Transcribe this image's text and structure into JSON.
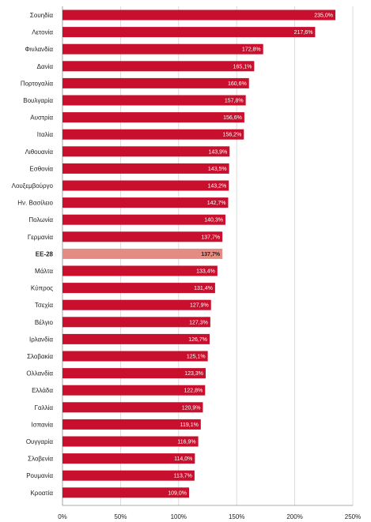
{
  "chart_data": {
    "type": "bar",
    "orientation": "horizontal",
    "categories": [
      "Σουηδία",
      "Λετονία",
      "Φινλανδία",
      "Δανία",
      "Πορτογαλία",
      "Βουλγαρία",
      "Αυστρία",
      "Ιταλία",
      "Λιθουανία",
      "Εσθονία",
      "Λουξεμβούργο",
      "Ην. Βασίλειο",
      "Πολωνία",
      "Γερμανία",
      "ΕΕ-28",
      "Μάλτα",
      "Κύπρος",
      "Τσεχία",
      "Βέλγιο",
      "Ιρλανδία",
      "Σλοβακία",
      "Ολλανδία",
      "Ελλάδα",
      "Γαλλία",
      "Ισπανία",
      "Ουγγαρία",
      "Σλοβενία",
      "Ρουμανία",
      "Κροατία"
    ],
    "values": [
      235.0,
      217.6,
      172.8,
      165.1,
      160.6,
      157.8,
      156.6,
      156.2,
      143.9,
      143.5,
      143.2,
      142.7,
      140.3,
      137.7,
      137.7,
      133.4,
      131.4,
      127.9,
      127.3,
      126.7,
      125.1,
      123.3,
      122.8,
      120.9,
      119.1,
      116.9,
      114.0,
      113.7,
      109.0
    ],
    "value_labels": [
      "235,0%",
      "217,6%",
      "172,8%",
      "165,1%",
      "160,6%",
      "157,8%",
      "156,6%",
      "156,2%",
      "143,9%",
      "143,5%",
      "143,2%",
      "142,7%",
      "140,3%",
      "137,7%",
      "137,7%",
      "133,4%",
      "131,4%",
      "127,9%",
      "127,3%",
      "126,7%",
      "125,1%",
      "123,3%",
      "122,8%",
      "120,9%",
      "119,1%",
      "116,9%",
      "114,0%",
      "113,7%",
      "109,0%"
    ],
    "highlight_category": "ΕΕ-28",
    "xlim": [
      0,
      250
    ],
    "xticks": [
      0,
      50,
      100,
      150,
      200,
      250
    ],
    "xtick_labels": [
      "0%",
      "50%",
      "100%",
      "150%",
      "200%",
      "250%"
    ],
    "grid": "vertical",
    "legend": "none",
    "colors": {
      "bar": "#c8102e",
      "highlight": "#e48b82",
      "grid": "#d4d4d4"
    },
    "title": "",
    "xlabel": "",
    "ylabel": ""
  }
}
